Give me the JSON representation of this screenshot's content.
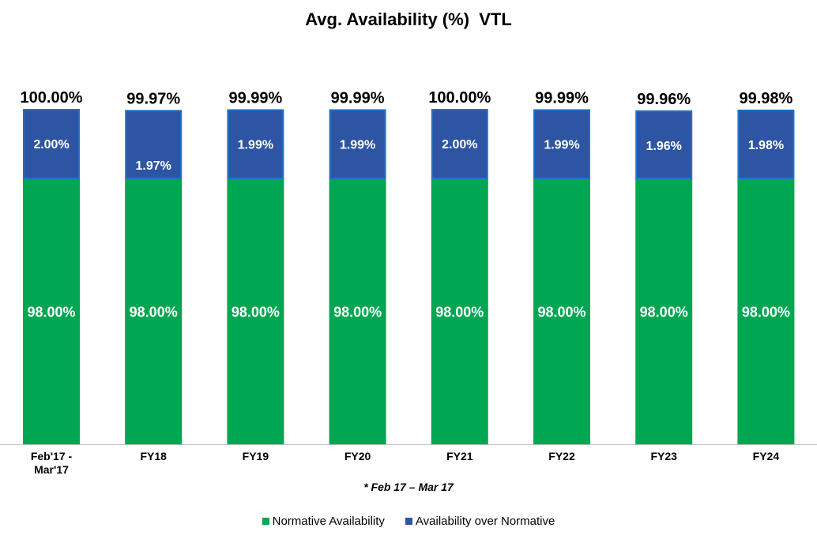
{
  "chart_data": {
    "type": "bar",
    "stacked": true,
    "title": "Avg. Availability (%)  VTL",
    "categories": [
      "Feb'17 - Mar'17",
      "FY18",
      "FY19",
      "FY20",
      "FY21",
      "FY22",
      "FY23",
      "FY24"
    ],
    "series": [
      {
        "name": "Normative Availability",
        "color": "#00A651",
        "values": [
          98.0,
          98.0,
          98.0,
          98.0,
          98.0,
          98.0,
          98.0,
          98.0
        ],
        "labels": [
          "98.00%",
          "98.00%",
          "98.00%",
          "98.00%",
          "98.00%",
          "98.00%",
          "98.00%",
          "98.00%"
        ]
      },
      {
        "name": "Availability over Normative",
        "color": "#2E55A3",
        "border_color": "#1F73C6",
        "values": [
          2.0,
          1.97,
          1.99,
          1.99,
          2.0,
          1.99,
          1.96,
          1.98
        ],
        "labels": [
          "2.00%",
          "1.97%",
          "1.99%",
          "1.99%",
          "2.00%",
          "1.99%",
          "1.96%",
          "1.98%"
        ]
      }
    ],
    "totals": [
      "100.00%",
      "99.97%",
      "99.99%",
      "99.99%",
      "100.00%",
      "99.99%",
      "99.96%",
      "99.98%"
    ],
    "ylim": [
      0,
      100
    ],
    "grid": false,
    "legend_position": "bottom",
    "footnote": "* Feb 17 – Mar 17"
  }
}
